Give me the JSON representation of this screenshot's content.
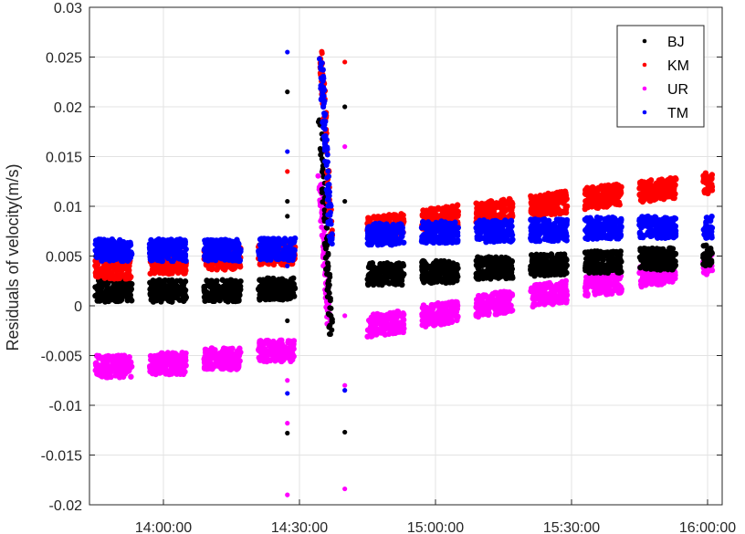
{
  "chart_data": {
    "type": "scatter",
    "title": "",
    "xlabel": "",
    "ylabel": "Residuals of velocity(m/s)",
    "ylim": [
      -0.02,
      0.03
    ],
    "xlim": [
      "13:47:00",
      "16:03:00"
    ],
    "grid": true,
    "legend_position": "top-right",
    "x_ticks": [
      "14:00:00",
      "14:30:00",
      "15:00:00",
      "15:30:00",
      "16:00:00"
    ],
    "y_ticks": [
      "-0.02",
      "-0.015",
      "-0.01",
      "-0.005",
      "0",
      "0.005",
      "0.01",
      "0.015",
      "0.02",
      "0.025",
      "0.03"
    ],
    "cluster_times": [
      "13:49",
      "14:01",
      "14:13",
      "14:25",
      "14:49",
      "15:01",
      "15:13",
      "15:25",
      "15:37",
      "15:49",
      "16:00"
    ],
    "series": [
      {
        "name": "BJ",
        "color": "#000000",
        "values": [
          0.0015,
          0.0015,
          0.0015,
          0.0017,
          0.0032,
          0.0034,
          0.0038,
          0.0041,
          0.0044,
          0.0047,
          0.005
        ]
      },
      {
        "name": "KM",
        "color": "#ff0000",
        "values": [
          0.0038,
          0.0043,
          0.0047,
          0.0052,
          0.008,
          0.0088,
          0.0095,
          0.0102,
          0.011,
          0.0117,
          0.0123
        ]
      },
      {
        "name": "UR",
        "color": "#ff00ff",
        "values": [
          -0.0061,
          -0.0058,
          -0.0053,
          -0.0045,
          -0.0018,
          -0.0008,
          0.0002,
          0.0012,
          0.0022,
          0.0032,
          0.0042
        ]
      },
      {
        "name": "TM",
        "color": "#0000ff",
        "values": [
          0.0056,
          0.0056,
          0.0056,
          0.0057,
          0.0072,
          0.0074,
          0.0075,
          0.0076,
          0.0078,
          0.0079,
          0.0079
        ]
      }
    ],
    "annotations": "Transient spike between ~14:34 and ~14:40 with values ranging from about -0.0185 to 0.0265"
  },
  "legend": {
    "items": [
      {
        "label": "BJ",
        "color": "#000000"
      },
      {
        "label": "KM",
        "color": "#ff0000"
      },
      {
        "label": "UR",
        "color": "#ff00ff"
      },
      {
        "label": "TM",
        "color": "#0000ff"
      }
    ]
  },
  "axes": {
    "ylabel": "Residuals of velocity(m/s)"
  }
}
